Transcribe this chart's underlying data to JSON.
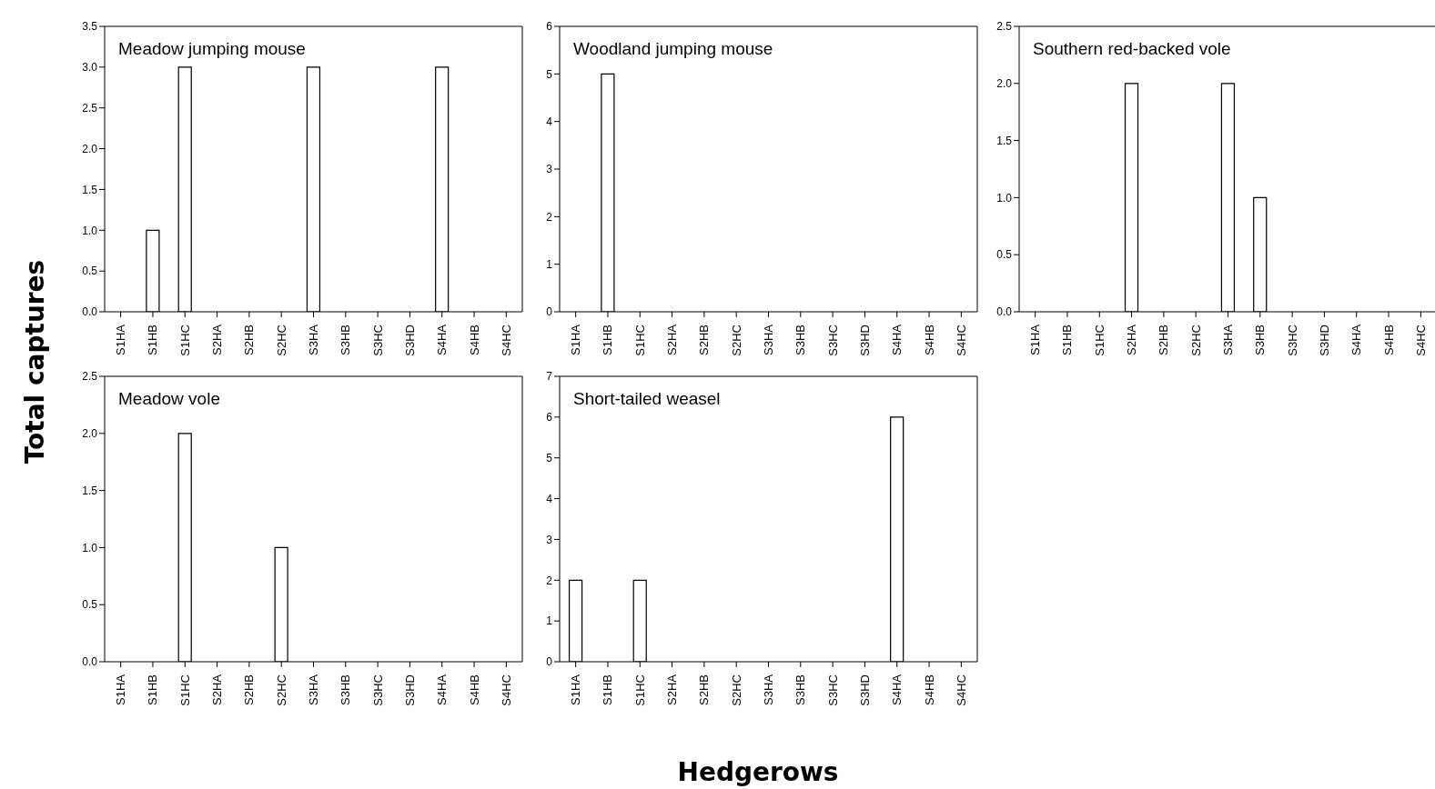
{
  "chart_data": [
    {
      "type": "bar",
      "title": "Meadow jumping mouse",
      "ylabel": "Total captures",
      "categories": [
        "S1HA",
        "S1HB",
        "S1HC",
        "S2HA",
        "S2HB",
        "S2HC",
        "S3HA",
        "S3HB",
        "S3HC",
        "S3HD",
        "S4HA",
        "S4HB",
        "S4HC"
      ],
      "values": [
        0,
        1,
        3,
        0,
        0,
        0,
        3,
        0,
        0,
        0,
        3,
        0,
        0
      ],
      "color": "#ffffff",
      "ylim": [
        0,
        3.5
      ],
      "yticks": [
        {
          "value": 0,
          "label": "0.0"
        },
        {
          "value": 0.5,
          "label": "0.5"
        },
        {
          "value": 1,
          "label": "1.0"
        },
        {
          "value": 1.5,
          "label": "1.5"
        },
        {
          "value": 2,
          "label": "2.0"
        },
        {
          "value": 2.5,
          "label": "2.5"
        },
        {
          "value": 3,
          "label": "3.0"
        },
        {
          "value": 3.5,
          "label": "3.5"
        }
      ],
      "grid": false,
      "legend": false
    },
    {
      "type": "bar",
      "title": "Woodland jumping mouse",
      "categories": [
        "S1HA",
        "S1HB",
        "S1HC",
        "S2HA",
        "S2HB",
        "S2HC",
        "S3HA",
        "S3HB",
        "S3HC",
        "S3HD",
        "S4HA",
        "S4HB",
        "S4HC"
      ],
      "values": [
        0,
        5,
        0,
        0,
        0,
        0,
        0,
        0,
        0,
        0,
        0,
        0,
        0
      ],
      "color": "#ffffff",
      "ylim": [
        0,
        6
      ],
      "yticks": [
        0,
        1,
        2,
        3,
        4,
        5,
        6
      ],
      "grid": false,
      "legend": false
    },
    {
      "type": "bar",
      "title": "Southern red-backed vole",
      "categories": [
        "S1HA",
        "S1HB",
        "S1HC",
        "S2HA",
        "S2HB",
        "S2HC",
        "S3HA",
        "S3HB",
        "S3HC",
        "S3HD",
        "S4HA",
        "S4HB",
        "S4HC"
      ],
      "values": [
        0,
        0,
        0,
        2,
        0,
        0,
        2,
        1,
        0,
        0,
        0,
        0,
        0
      ],
      "color": "#ffffff",
      "ylim": [
        0,
        2.5
      ],
      "yticks": [
        {
          "value": 0,
          "label": "0.0"
        },
        {
          "value": 0.5,
          "label": "0.5"
        },
        {
          "value": 1,
          "label": "1.0"
        },
        {
          "value": 1.5,
          "label": "1.5"
        },
        {
          "value": 2,
          "label": "2.0"
        },
        {
          "value": 2.5,
          "label": "2.5"
        }
      ],
      "grid": false,
      "legend": false
    },
    {
      "type": "bar",
      "title": "Meadow vole",
      "categories": [
        "S1HA",
        "S1HB",
        "S1HC",
        "S2HA",
        "S2HB",
        "S2HC",
        "S3HA",
        "S3HB",
        "S3HC",
        "S3HD",
        "S4HA",
        "S4HB",
        "S4HC"
      ],
      "values": [
        0,
        0,
        2,
        0,
        0,
        1,
        0,
        0,
        0,
        0,
        0,
        0,
        0
      ],
      "color": "#ffffff",
      "ylim": [
        0,
        2.5
      ],
      "yticks": [
        {
          "value": 0,
          "label": "0.0"
        },
        {
          "value": 0.5,
          "label": "0.5"
        },
        {
          "value": 1,
          "label": "1.0"
        },
        {
          "value": 1.5,
          "label": "1.5"
        },
        {
          "value": 2,
          "label": "2.0"
        },
        {
          "value": 2.5,
          "label": "2.5"
        }
      ],
      "grid": false,
      "legend": false
    },
    {
      "type": "bar",
      "title": "Short-tailed weasel",
      "xlabel": "Hedgerows",
      "categories": [
        "S1HA",
        "S1HB",
        "S1HC",
        "S2HA",
        "S2HB",
        "S2HC",
        "S3HA",
        "S3HB",
        "S3HC",
        "S3HD",
        "S4HA",
        "S4HB",
        "S4HC"
      ],
      "values": [
        2,
        0,
        2,
        0,
        0,
        0,
        0,
        0,
        0,
        0,
        6,
        0,
        0
      ],
      "color": "#ffffff",
      "ylim": [
        0,
        7
      ],
      "yticks": [
        0,
        1,
        2,
        3,
        4,
        5,
        6,
        7
      ],
      "grid": false,
      "legend": false
    }
  ]
}
